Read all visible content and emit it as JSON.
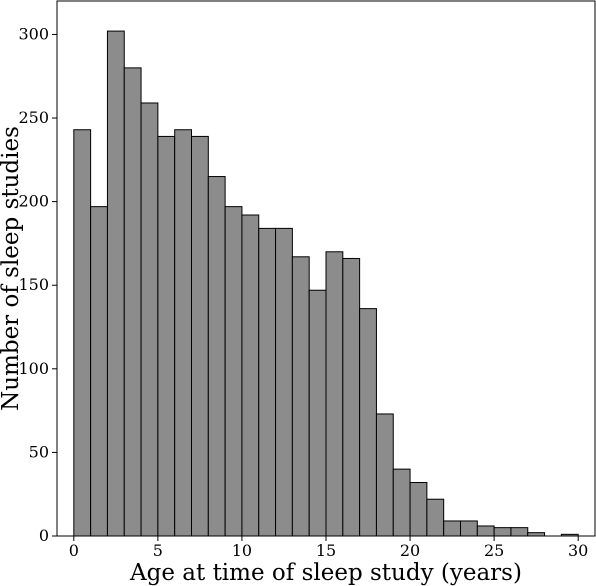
{
  "chart_data": {
    "type": "bar",
    "title": "",
    "xlabel": "Age at time of sleep study (years)",
    "ylabel": "Number of sleep studies",
    "bin_start": 0,
    "bin_width": 1,
    "values": [
      243,
      197,
      302,
      280,
      259,
      239,
      243,
      239,
      215,
      197,
      192,
      184,
      184,
      167,
      147,
      170,
      166,
      136,
      73,
      40,
      32,
      22,
      9,
      9,
      6,
      5,
      5,
      2,
      0,
      1
    ],
    "xlim": [
      -1,
      31
    ],
    "ylim": [
      0,
      320
    ],
    "xticks": [
      0,
      5,
      10,
      15,
      20,
      25,
      30
    ],
    "yticks": [
      0,
      50,
      100,
      150,
      200,
      250,
      300
    ],
    "bar_color": "#8c8c8c",
    "edge_color": "#000000",
    "grid": false,
    "legend": false
  }
}
